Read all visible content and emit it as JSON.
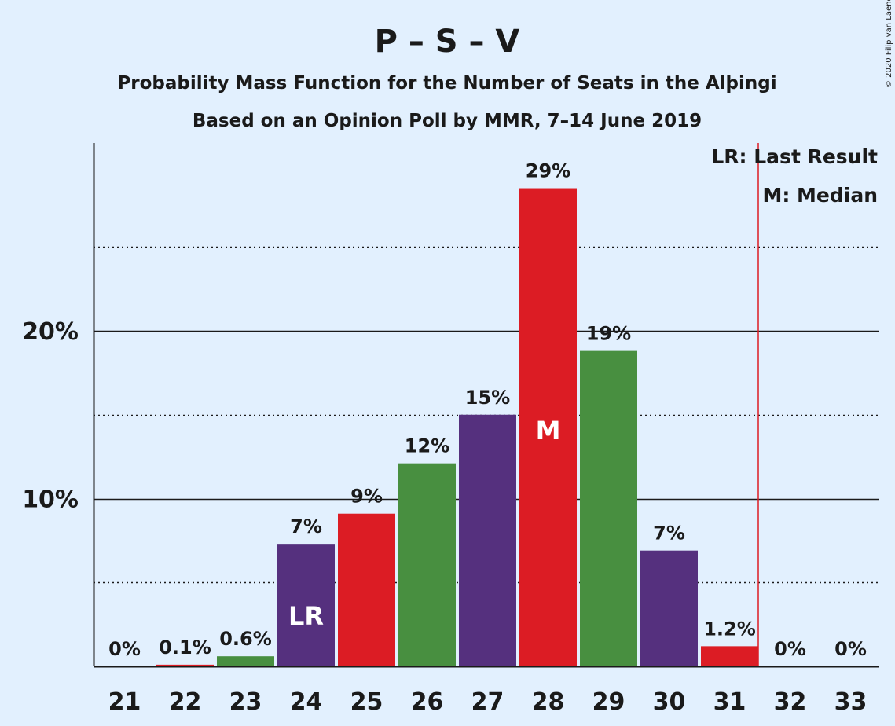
{
  "chart_data": {
    "type": "bar",
    "title": "P – S – V",
    "subtitle_lines": [
      "Probability Mass Function for the Number of Seats in the Alþingi",
      "Based on an Opinion Poll by MMR, 7–14 June 2019"
    ],
    "categories": [
      "21",
      "22",
      "23",
      "24",
      "25",
      "26",
      "27",
      "28",
      "29",
      "30",
      "31",
      "32",
      "33"
    ],
    "values": [
      0,
      0.1,
      0.6,
      7.3,
      9.1,
      12.1,
      15.0,
      28.5,
      18.8,
      6.9,
      1.2,
      0,
      0
    ],
    "value_labels": [
      "0%",
      "0.1%",
      "0.6%",
      "7%",
      "9%",
      "12%",
      "15%",
      "29%",
      "19%",
      "7%",
      "1.2%",
      "0%",
      "0%"
    ],
    "bar_colors": [
      "#55307e",
      "#dc1c24",
      "#488f40",
      "#55307e",
      "#dc1c24",
      "#488f40",
      "#55307e",
      "#dc1c24",
      "#488f40",
      "#55307e",
      "#dc1c24",
      "#488f40",
      "#55307e"
    ],
    "ylim": [
      0,
      31
    ],
    "yticks": [
      10,
      20
    ],
    "ytick_labels": [
      "10%",
      "20%"
    ],
    "minor_gridlines": [
      5,
      15,
      25
    ],
    "last_result_category": "24",
    "last_result_bar_label": "LR",
    "median_category": "28",
    "median_bar_label": "M",
    "majority_line_after": "31",
    "majority_line_color": "#dc1c24",
    "legend_position": "top-right",
    "legend": [
      "LR: Last Result",
      "M: Median"
    ],
    "copyright": "© 2020 Filip van Laenen"
  }
}
